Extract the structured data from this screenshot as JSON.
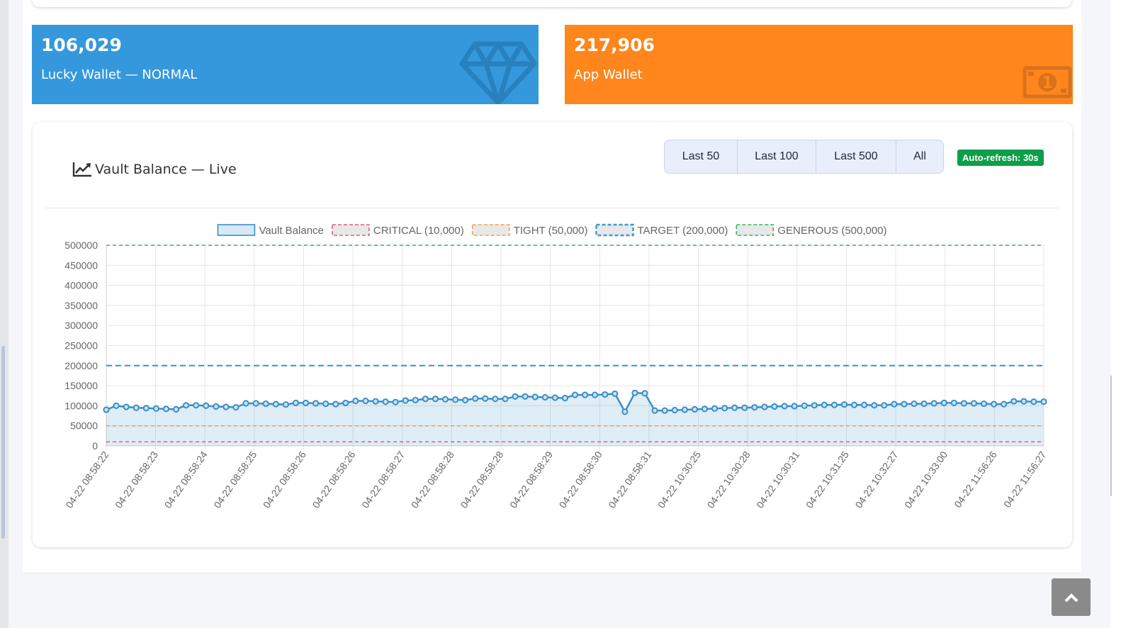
{
  "wallets": [
    {
      "amount": "106,029",
      "label": "Lucky Wallet — NORMAL",
      "icon": "diamond-icon",
      "color": "#3598dc"
    },
    {
      "amount": "217,906",
      "label": "App Wallet",
      "icon": "money-bill-icon",
      "color": "#fe861c"
    }
  ],
  "card": {
    "title": "Vault Balance — Live",
    "icon": "chart-line-icon",
    "range_buttons": [
      "Last 50",
      "Last 100",
      "Last 500",
      "All"
    ],
    "badge": "Auto-refresh: 30s"
  },
  "chart_data": {
    "type": "line",
    "legend_position": "top",
    "grid": true,
    "ylim": [
      0,
      500000
    ],
    "y_ticks": [
      0,
      50000,
      100000,
      150000,
      200000,
      250000,
      300000,
      350000,
      400000,
      450000,
      500000
    ],
    "x_tick_labels": [
      "04-22 08:58:22",
      "04-22 08:58:23",
      "04-22 08:58:24",
      "04-22 08:58:25",
      "04-22 08:58:26",
      "04-22 08:58:26",
      "04-22 08:58:27",
      "04-22 08:58:28",
      "04-22 08:58:28",
      "04-22 08:58:29",
      "04-22 08:58:30",
      "04-22 08:58:31",
      "04-22 10:30:25",
      "04-22 10:30:28",
      "04-22 10:30:31",
      "04-22 10:31:25",
      "04-22 10:32:27",
      "04-22 10:33:00",
      "04-22 11:56:26",
      "04-22 11:56:27"
    ],
    "series": [
      {
        "name": "Vault Balance",
        "color": "#3a8fc7",
        "fill": true,
        "values": [
          90000,
          100000,
          97000,
          95000,
          94000,
          93000,
          92000,
          91000,
          101000,
          101000,
          100000,
          98000,
          97000,
          96000,
          106000,
          106000,
          105000,
          104000,
          103000,
          107000,
          107000,
          106000,
          105000,
          104000,
          107000,
          112000,
          112000,
          111000,
          110000,
          109000,
          113000,
          114000,
          117000,
          117000,
          116000,
          115000,
          114000,
          118000,
          118000,
          117000,
          117000,
          123000,
          123000,
          122000,
          121000,
          120000,
          119000,
          127000,
          127000,
          127000,
          128000,
          130000,
          85000,
          132000,
          131000,
          88000,
          88000,
          89000,
          90000,
          91000,
          92000,
          93000,
          94000,
          95000,
          95000,
          96000,
          97000,
          98000,
          99000,
          99000,
          100000,
          101000,
          102000,
          102000,
          103000,
          102000,
          102000,
          101000,
          101000,
          104000,
          104000,
          105000,
          105000,
          106000,
          107000,
          107000,
          106000,
          106000,
          105000,
          104000,
          104000,
          111000,
          111000,
          110000,
          110000
        ]
      },
      {
        "name": "CRITICAL (10,000)",
        "color": "#e05c7a",
        "dashed": true,
        "constant": 10000
      },
      {
        "name": "TIGHT (50,000)",
        "color": "#f0a050",
        "dashed": true,
        "constant": 50000
      },
      {
        "name": "TARGET (200,000)",
        "color": "#3a9ad9",
        "dashed": true,
        "constant": 200000
      },
      {
        "name": "GENEROUS (500,000)",
        "color": "#38b26b",
        "dashed": true,
        "constant": 500000
      }
    ]
  }
}
